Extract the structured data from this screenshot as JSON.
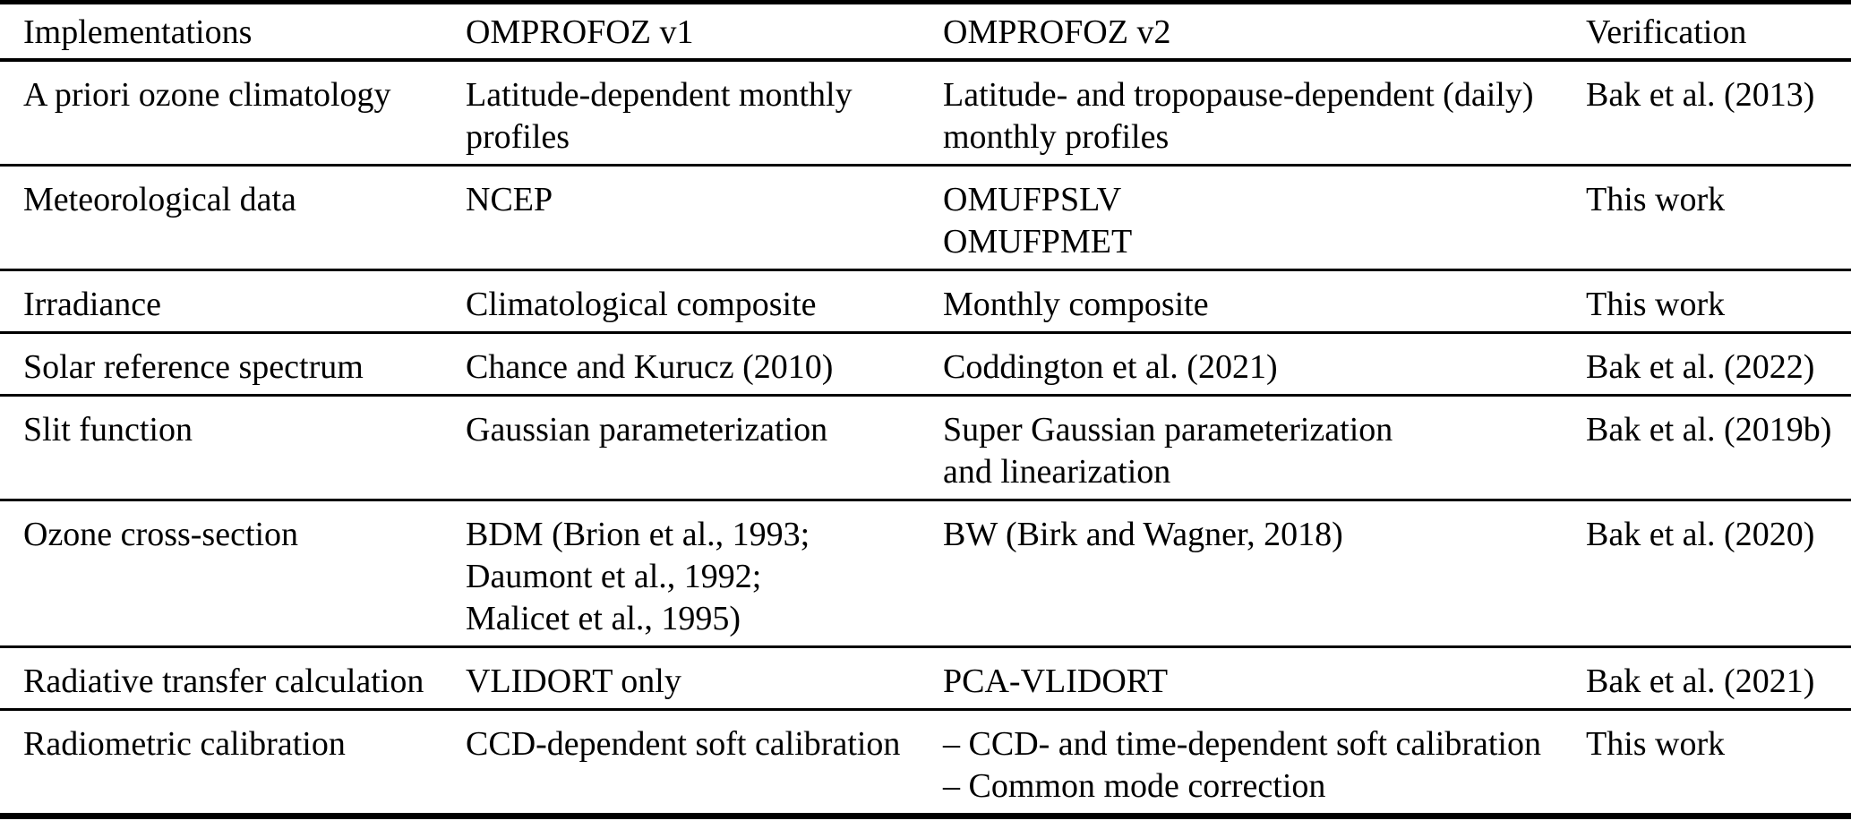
{
  "table": {
    "columns": [
      "Implementations",
      "OMPROFOZ v1",
      "OMPROFOZ v2",
      "Verification"
    ],
    "rows": [
      {
        "implementation": "A priori ozone climatology",
        "v1_lines": [
          "Latitude-dependent monthly",
          "profiles"
        ],
        "v2_lines": [
          "Latitude- and tropopause-dependent (daily)",
          "monthly profiles"
        ],
        "verification": "Bak et al. (2013)"
      },
      {
        "implementation": "Meteorological data",
        "v1_lines": [
          "NCEP"
        ],
        "v2_lines": [
          "OMUFPSLV",
          "OMUFPMET"
        ],
        "verification": "This work"
      },
      {
        "implementation": "Irradiance",
        "v1_lines": [
          "Climatological composite"
        ],
        "v2_lines": [
          "Monthly composite"
        ],
        "verification": "This work"
      },
      {
        "implementation": "Solar reference spectrum",
        "v1_lines": [
          "Chance and Kurucz (2010)"
        ],
        "v2_lines": [
          "Coddington et al. (2021)"
        ],
        "verification": "Bak et al. (2022)"
      },
      {
        "implementation": "Slit function",
        "v1_lines": [
          "Gaussian parameterization"
        ],
        "v2_lines": [
          "Super Gaussian parameterization",
          "and linearization"
        ],
        "verification": "Bak et al. (2019b)"
      },
      {
        "implementation": "Ozone cross-section",
        "v1_lines": [
          "BDM (Brion et al., 1993;",
          "Daumont et al., 1992;",
          "Malicet et al., 1995)"
        ],
        "v2_lines": [
          "BW (Birk and Wagner, 2018)"
        ],
        "verification": "Bak et al. (2020)"
      },
      {
        "implementation": "Radiative transfer calculation",
        "v1_lines": [
          "VLIDORT only"
        ],
        "v2_lines": [
          "PCA-VLIDORT"
        ],
        "verification": "Bak et al. (2021)"
      },
      {
        "implementation": "Radiometric calibration",
        "v1_lines": [
          "CCD-dependent soft calibration"
        ],
        "v2_lines": [
          "– CCD- and time-dependent soft calibration",
          "– Common mode correction"
        ],
        "verification": "This work"
      }
    ]
  },
  "colors": {
    "text": "#000000",
    "background": "#ffffff",
    "rule": "#000000"
  }
}
